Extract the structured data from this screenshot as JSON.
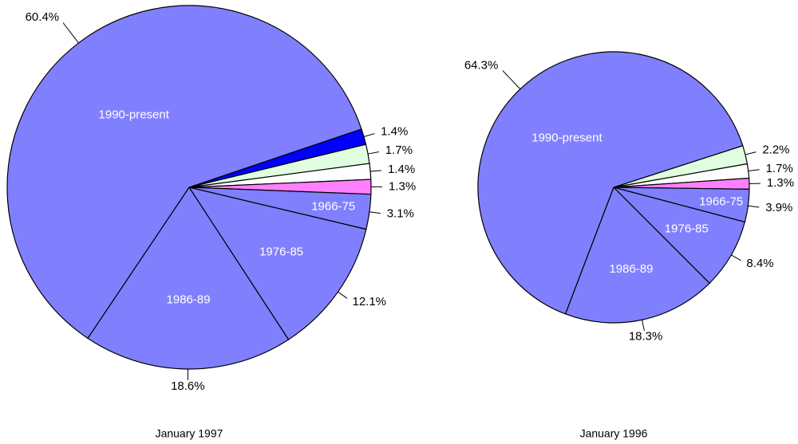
{
  "chart_data": [
    {
      "type": "pie",
      "title": "January 1997",
      "categories": [
        null,
        null,
        null,
        null,
        "1966-75",
        "1976-85",
        "1986-89",
        "1990-present"
      ],
      "values": [
        1.4,
        1.7,
        1.4,
        1.3,
        3.1,
        12.1,
        18.6,
        60.4
      ],
      "value_labels": [
        "1.4%",
        "1.7%",
        "1.4%",
        "1.3%",
        "3.1%",
        "12.1%",
        "18.6%",
        "60.4%"
      ],
      "colors": [
        "#0000ff",
        "#e0ffe0",
        "#ffffff",
        "#ff80ff",
        "#8080ff",
        "#8080ff",
        "#8080ff",
        "#8080ff"
      ]
    },
    {
      "type": "pie",
      "title": "January 1996",
      "categories": [
        null,
        null,
        null,
        "1966-75",
        "1976-85",
        "1986-89",
        "1990-present"
      ],
      "values": [
        2.2,
        1.7,
        1.3,
        3.9,
        8.4,
        18.3,
        64.3
      ],
      "value_labels": [
        "2.2%",
        "1.7%",
        "1.3%",
        "3.9%",
        "8.4%",
        "18.3%",
        "64.3%"
      ],
      "colors": [
        "#e0ffe0",
        "#ffffff",
        "#ff80ff",
        "#8080ff",
        "#8080ff",
        "#8080ff",
        "#8080ff"
      ]
    }
  ]
}
